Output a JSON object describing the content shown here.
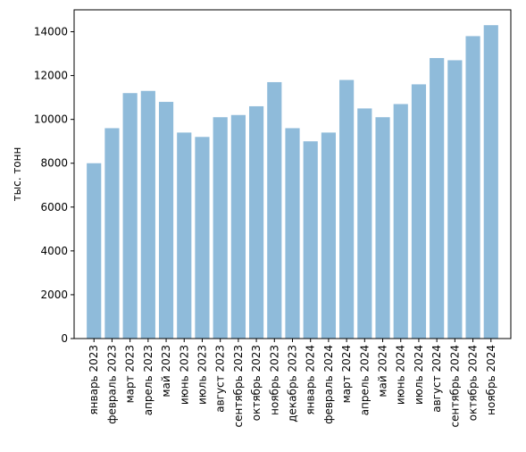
{
  "chart_data": {
    "type": "bar",
    "title": "",
    "xlabel": "",
    "ylabel": "тыс. тонн",
    "ylim": [
      0,
      15000
    ],
    "yticks": [
      0,
      2000,
      4000,
      6000,
      8000,
      10000,
      12000,
      14000
    ],
    "grid": false,
    "legend": "none",
    "bar_color": "#8fbbda",
    "categories": [
      "январь 2023",
      "февраль 2023",
      "март 2023",
      "апрель 2023",
      "май 2023",
      "июнь 2023",
      "июль 2023",
      "август 2023",
      "сентябрь 2023",
      "октябрь 2023",
      "ноябрь 2023",
      "декабрь 2023",
      "январь 2024",
      "февраль 2024",
      "март 2024",
      "апрель 2024",
      "май 2024",
      "июнь 2024",
      "июль 2024",
      "август 2024",
      "сентябрь 2024",
      "октябрь 2024",
      "ноябрь 2024"
    ],
    "values": [
      8000,
      9600,
      11200,
      11300,
      10800,
      9400,
      9200,
      10100,
      10200,
      10600,
      11700,
      9600,
      9000,
      9400,
      11800,
      10500,
      10100,
      10700,
      11600,
      12800,
      12700,
      13800,
      14300
    ]
  }
}
